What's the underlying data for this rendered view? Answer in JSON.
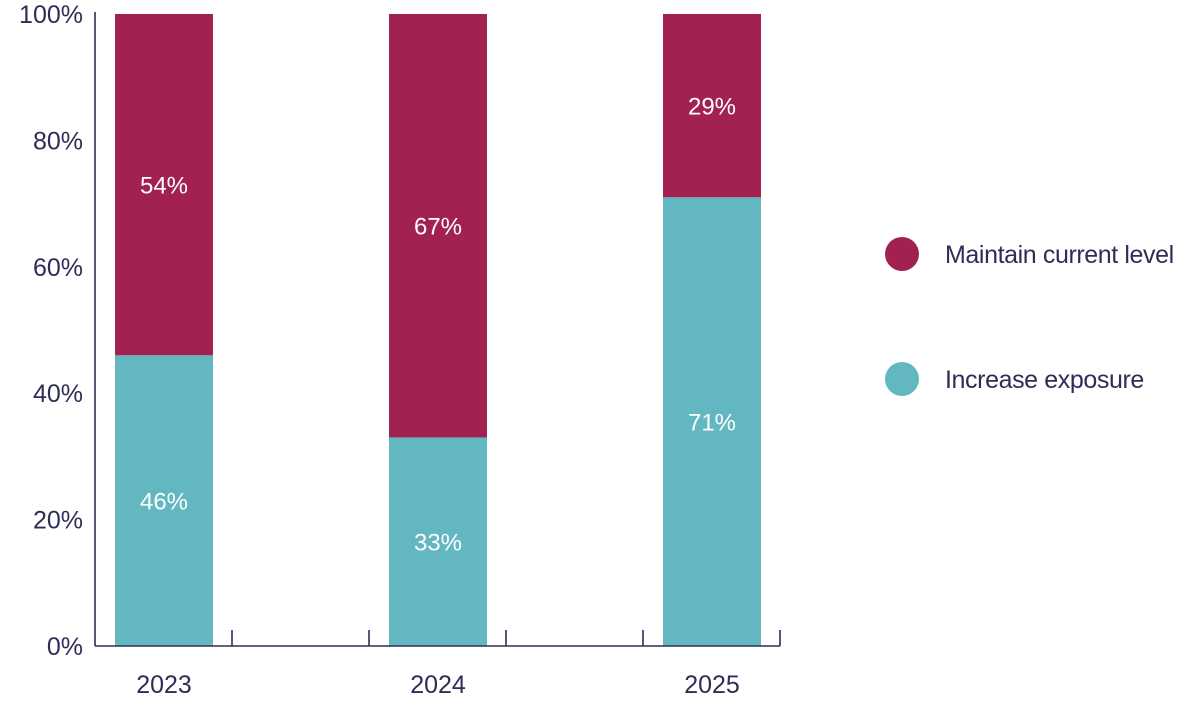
{
  "chart_data": {
    "type": "bar",
    "stacked": true,
    "categories": [
      "2023",
      "2024",
      "2025"
    ],
    "series": [
      {
        "name": "Increase exposure",
        "color": "#63b7c0",
        "values": [
          46,
          33,
          71
        ]
      },
      {
        "name": "Maintain current level",
        "color": "#a12150",
        "values": [
          54,
          67,
          29
        ]
      }
    ],
    "value_suffix": "%",
    "ylim": [
      0,
      100
    ],
    "yticks": [
      "0%",
      "20%",
      "40%",
      "60%",
      "80%",
      "100%"
    ],
    "legend_position": "right",
    "legend_order": [
      "Maintain current level",
      "Increase exposure"
    ],
    "axis_color": "#2d2d57"
  }
}
